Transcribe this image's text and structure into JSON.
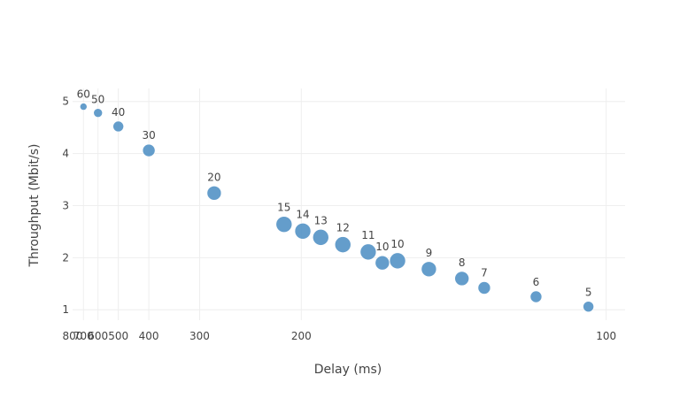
{
  "chart_data": {
    "type": "scatter",
    "title": "",
    "xlabel": "Delay (ms)",
    "ylabel": "Throughput (Mbit/s)",
    "x_scale": "reciprocal",
    "x_ticks": [
      800,
      700,
      600,
      500,
      400,
      300,
      200,
      100
    ],
    "y_ticks": [
      1,
      2,
      3,
      4,
      5
    ],
    "xlim": [
      800,
      97
    ],
    "ylim": [
      0.8,
      5.25
    ],
    "grid": true,
    "marker_color": "#4f8fc4",
    "points": [
      {
        "x": 700,
        "y": 4.9,
        "label": "60",
        "size": 8
      },
      {
        "x": 600,
        "y": 4.78,
        "label": "50",
        "size": 10
      },
      {
        "x": 500,
        "y": 4.52,
        "label": "40",
        "size": 12
      },
      {
        "x": 400,
        "y": 4.06,
        "label": "30",
        "size": 14
      },
      {
        "x": 280,
        "y": 3.24,
        "label": "20",
        "size": 16
      },
      {
        "x": 212,
        "y": 2.64,
        "label": "15",
        "size": 18
      },
      {
        "x": 199,
        "y": 2.51,
        "label": "14",
        "size": 18
      },
      {
        "x": 188,
        "y": 2.39,
        "label": "13",
        "size": 18
      },
      {
        "x": 176,
        "y": 2.25,
        "label": "12",
        "size": 18
      },
      {
        "x": 164,
        "y": 2.11,
        "label": "11",
        "size": 18
      },
      {
        "x": 158,
        "y": 1.9,
        "label": "10",
        "size": 16
      },
      {
        "x": 152,
        "y": 1.94,
        "label": "10",
        "size": 18
      },
      {
        "x": 141,
        "y": 1.78,
        "label": "9",
        "size": 17
      },
      {
        "x": 131,
        "y": 1.6,
        "label": "8",
        "size": 16
      },
      {
        "x": 125,
        "y": 1.42,
        "label": "7",
        "size": 14
      },
      {
        "x": 113,
        "y": 1.25,
        "label": "6",
        "size": 13
      },
      {
        "x": 103,
        "y": 1.06,
        "label": "5",
        "size": 12
      }
    ]
  }
}
